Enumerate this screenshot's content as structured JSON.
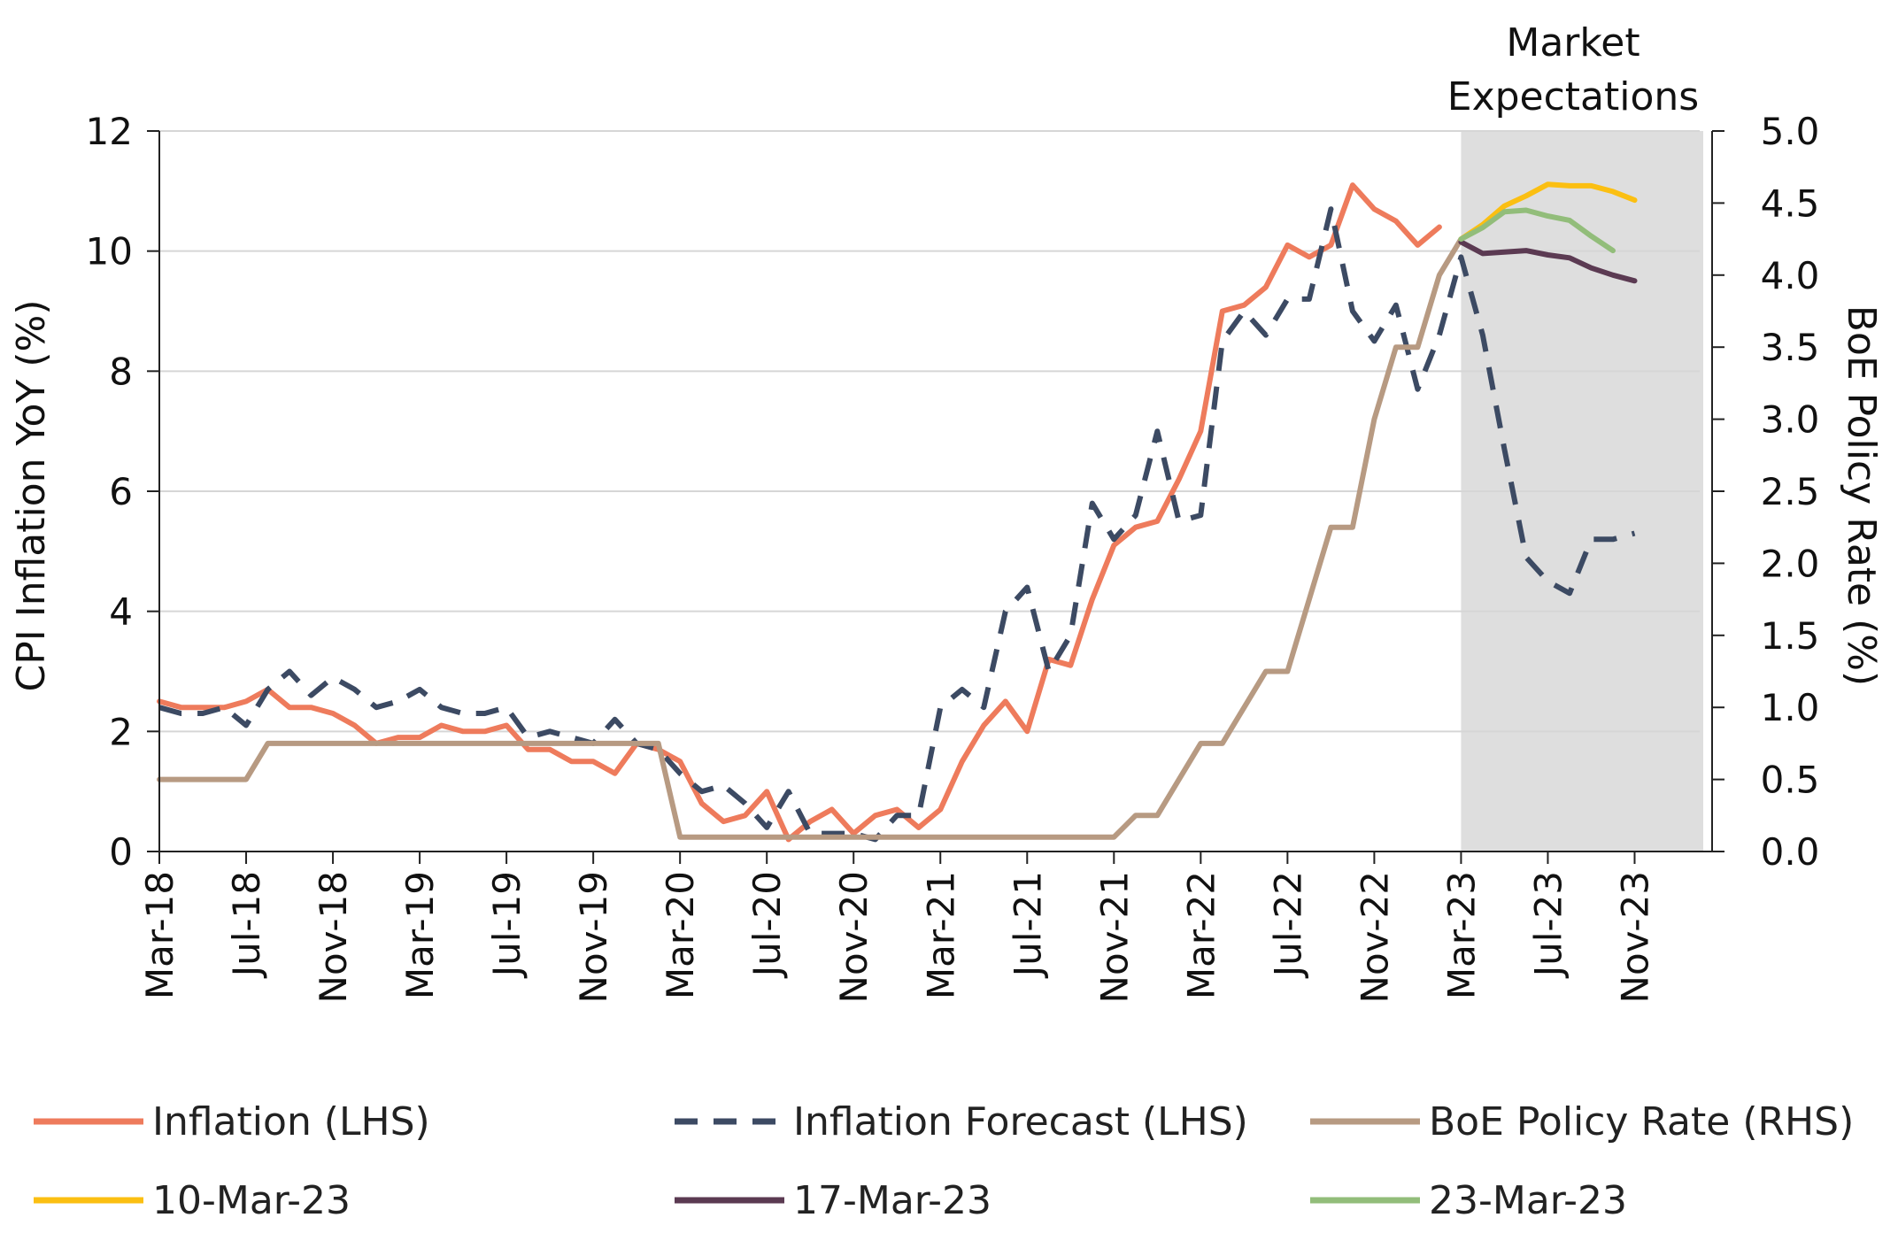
{
  "chart_data": {
    "type": "line",
    "title": "",
    "ylabel_left": "CPI Inflation YoY (%)",
    "ylabel_right": "BoE Policy Rate (%)",
    "xlabel": "",
    "ylim_left": [
      0,
      12
    ],
    "ylim_right": [
      0,
      5
    ],
    "yticks_left": [
      "0",
      "2",
      "4",
      "6",
      "8",
      "10",
      "12"
    ],
    "yticks_right": [
      "0.0",
      "0.5",
      "1.0",
      "1.5",
      "2.0",
      "2.5",
      "3.0",
      "3.5",
      "4.0",
      "4.5",
      "5.0"
    ],
    "x_start": "Mar-18",
    "x_end_index": 71,
    "xtick_labels": [
      "Mar-18",
      "Jul-18",
      "Nov-18",
      "Mar-19",
      "Jul-19",
      "Nov-19",
      "Mar-20",
      "Jul-20",
      "Nov-20",
      "Mar-21",
      "Jul-21",
      "Nov-21",
      "Mar-22",
      "Jul-22",
      "Nov-22",
      "Mar-23",
      "Jul-23",
      "Nov-23"
    ],
    "xtick_indices": [
      0,
      4,
      8,
      12,
      16,
      20,
      24,
      28,
      32,
      36,
      40,
      44,
      48,
      52,
      56,
      60,
      64,
      68
    ],
    "shaded_region": {
      "label_line1": "Market",
      "label_line2": "Expectations",
      "from_index": 60,
      "to_index": 71
    },
    "series": [
      {
        "name": "Inflation (LHS)",
        "axis": "left",
        "color": "#ee7b5c",
        "dash": "",
        "start_index": 0,
        "values": [
          2.5,
          2.4,
          2.4,
          2.4,
          2.5,
          2.7,
          2.4,
          2.4,
          2.3,
          2.1,
          1.8,
          1.9,
          1.9,
          2.1,
          2.0,
          2.0,
          2.1,
          1.7,
          1.7,
          1.5,
          1.5,
          1.3,
          1.8,
          1.7,
          1.5,
          0.8,
          0.5,
          0.6,
          1.0,
          0.2,
          0.5,
          0.7,
          0.3,
          0.6,
          0.7,
          0.4,
          0.7,
          1.5,
          2.1,
          2.5,
          2.0,
          3.2,
          3.1,
          4.2,
          5.1,
          5.4,
          5.5,
          6.2,
          7.0,
          9.0,
          9.1,
          9.4,
          10.1,
          9.9,
          10.1,
          11.1,
          10.7,
          10.5,
          10.1,
          10.4
        ]
      },
      {
        "name": "Inflation Forecast (LHS)",
        "axis": "left",
        "color": "#3c4a63",
        "dash": "26 18",
        "start_index": 0,
        "values": [
          2.4,
          2.3,
          2.3,
          2.4,
          2.1,
          2.7,
          3.0,
          2.6,
          2.9,
          2.7,
          2.4,
          2.5,
          2.7,
          2.4,
          2.3,
          2.3,
          2.4,
          1.9,
          2.0,
          1.9,
          1.8,
          2.2,
          1.8,
          1.7,
          1.3,
          1.0,
          1.1,
          0.8,
          0.4,
          1.0,
          0.3,
          0.3,
          0.3,
          0.2,
          0.6,
          0.6,
          2.4,
          2.7,
          2.4,
          4.0,
          4.4,
          3.0,
          3.6,
          5.8,
          5.2,
          5.6,
          7.0,
          5.5,
          5.6,
          8.5,
          9.0,
          8.6,
          9.2,
          9.2,
          10.7,
          9.0,
          8.5,
          9.1,
          7.7,
          8.6,
          9.9,
          8.6,
          6.7,
          4.9,
          4.5,
          4.3,
          5.2,
          5.2,
          5.3
        ]
      },
      {
        "name": "BoE Policy Rate (RHS)",
        "axis": "right",
        "color": "#b79a82",
        "dash": "",
        "start_index": 0,
        "values": [
          0.5,
          0.5,
          0.5,
          0.5,
          0.5,
          0.75,
          0.75,
          0.75,
          0.75,
          0.75,
          0.75,
          0.75,
          0.75,
          0.75,
          0.75,
          0.75,
          0.75,
          0.75,
          0.75,
          0.75,
          0.75,
          0.75,
          0.75,
          0.75,
          0.1,
          0.1,
          0.1,
          0.1,
          0.1,
          0.1,
          0.1,
          0.1,
          0.1,
          0.1,
          0.1,
          0.1,
          0.1,
          0.1,
          0.1,
          0.1,
          0.1,
          0.1,
          0.1,
          0.1,
          0.1,
          0.25,
          0.25,
          0.5,
          0.75,
          0.75,
          1.0,
          1.25,
          1.25,
          1.75,
          2.25,
          2.25,
          3.0,
          3.5,
          3.5,
          4.0,
          4.25
        ]
      },
      {
        "name": "10-Mar-23",
        "axis": "right",
        "color": "#fbbf12",
        "dash": "",
        "start_index": 60,
        "values": [
          4.25,
          4.35,
          4.48,
          4.55,
          4.63,
          4.62,
          4.62,
          4.58,
          4.52
        ]
      },
      {
        "name": "17-Mar-23",
        "axis": "right",
        "color": "#5b3a52",
        "dash": "",
        "start_index": 60,
        "values": [
          4.23,
          4.15,
          4.16,
          4.17,
          4.14,
          4.12,
          4.05,
          4.0,
          3.96
        ]
      },
      {
        "name": "23-Mar-23",
        "axis": "right",
        "color": "#92bd7a",
        "dash": "",
        "start_index": 60,
        "values": [
          4.25,
          4.33,
          4.44,
          4.45,
          4.41,
          4.38,
          4.27,
          4.17
        ]
      }
    ]
  },
  "legend": {
    "items": [
      {
        "label": "Inflation (LHS)",
        "color": "#ee7b5c",
        "dash": ""
      },
      {
        "label": "Inflation Forecast (LHS)",
        "color": "#3c4a63",
        "dash": "26 18"
      },
      {
        "label": "BoE Policy Rate (RHS)",
        "color": "#b79a82",
        "dash": ""
      },
      {
        "label": "10-Mar-23",
        "color": "#fbbf12",
        "dash": ""
      },
      {
        "label": "17-Mar-23",
        "color": "#5b3a52",
        "dash": ""
      },
      {
        "label": "23-Mar-23",
        "color": "#92bd7a",
        "dash": ""
      }
    ]
  },
  "colors": {
    "grid": "#d6d6d6",
    "axis": "#222222",
    "shade": "#dedede"
  }
}
